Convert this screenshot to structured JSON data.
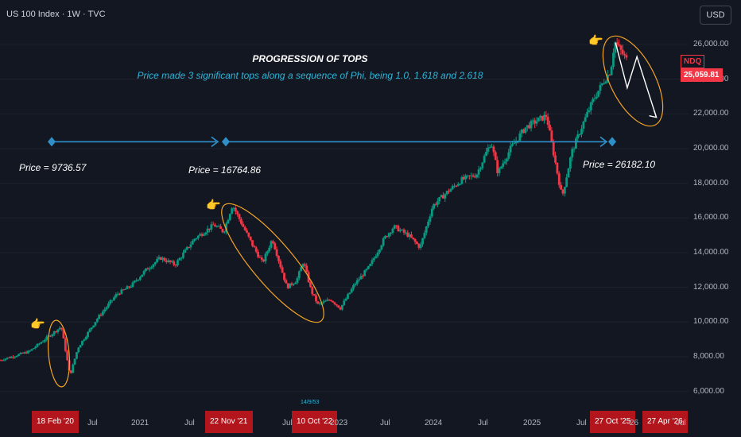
{
  "header": {
    "title": "US 100 Index · 1W · TVC",
    "currency": "USD"
  },
  "annotation": {
    "title": "PROGRESSION OF TOPS",
    "subtitle": "Price made 3 significant tops along a sequence of Phi, being 1.0, 1.618 and 2.618"
  },
  "price_labels": [
    "Price = 9736.57",
    "Price = 16764.86",
    "Price = 26182.10"
  ],
  "small_note": "14/9/53",
  "icons": {
    "hand": "pointing-hand-icon"
  },
  "colors": {
    "up": "#089981",
    "down": "#f23645",
    "ellipse": "#f5a524",
    "arrow": "#2e8fc9",
    "highlight": "#b2151c",
    "background": "#131722"
  },
  "chart_data": {
    "type": "candlestick",
    "title": "US 100 Index · 1W · TVC",
    "symbol": "NDQ",
    "last_price": "25,059.81",
    "ylim": [
      5000,
      27200
    ],
    "y_ticks": [
      "26,000.00",
      "24,000.00",
      "22,000.00",
      "20,000.00",
      "18,000.00",
      "16,000.00",
      "14,000.00",
      "12,000.00",
      "10,000.00",
      "8,000.00",
      "6,000.00"
    ],
    "x_ticks": [
      {
        "label": "18 Feb '20",
        "highlight": true
      },
      {
        "label": "Jul",
        "highlight": false
      },
      {
        "label": "2021",
        "highlight": false
      },
      {
        "label": "Jul",
        "highlight": false
      },
      {
        "label": "22 Nov '21",
        "highlight": true
      },
      {
        "label": "Jul",
        "highlight": false
      },
      {
        "label": "10 Oct '22",
        "highlight": true
      },
      {
        "label": "2023",
        "highlight": false
      },
      {
        "label": "Jul",
        "highlight": false
      },
      {
        "label": "2024",
        "highlight": false
      },
      {
        "label": "Jul",
        "highlight": false
      },
      {
        "label": "2025",
        "highlight": false
      },
      {
        "label": "Jul",
        "highlight": false
      },
      {
        "label": "27 Oct '25",
        "highlight": true
      },
      {
        "label": "'26",
        "highlight": false
      },
      {
        "label": "27 Apr '26",
        "highlight": true
      },
      {
        "label": "Jul",
        "highlight": false
      }
    ],
    "price_path": [
      [
        2019.5,
        7800
      ],
      [
        2019.8,
        8300
      ],
      [
        2020.13,
        9736
      ],
      [
        2020.22,
        6900
      ],
      [
        2020.3,
        8500
      ],
      [
        2020.5,
        10200
      ],
      [
        2020.7,
        11600
      ],
      [
        2020.85,
        12100
      ],
      [
        2021.0,
        13000
      ],
      [
        2021.15,
        13700
      ],
      [
        2021.3,
        13300
      ],
      [
        2021.5,
        14800
      ],
      [
        2021.7,
        15600
      ],
      [
        2021.8,
        15200
      ],
      [
        2021.89,
        16764
      ],
      [
        2022.0,
        15500
      ],
      [
        2022.1,
        14400
      ],
      [
        2022.2,
        13400
      ],
      [
        2022.3,
        14800
      ],
      [
        2022.45,
        12000
      ],
      [
        2022.55,
        12400
      ],
      [
        2022.62,
        13500
      ],
      [
        2022.7,
        11800
      ],
      [
        2022.77,
        11000
      ],
      [
        2022.9,
        11300
      ],
      [
        2023.0,
        10800
      ],
      [
        2023.15,
        12200
      ],
      [
        2023.3,
        13200
      ],
      [
        2023.45,
        14800
      ],
      [
        2023.55,
        15500
      ],
      [
        2023.7,
        15000
      ],
      [
        2023.82,
        14300
      ],
      [
        2023.95,
        16700
      ],
      [
        2024.1,
        17500
      ],
      [
        2024.25,
        18200
      ],
      [
        2024.4,
        18500
      ],
      [
        2024.55,
        20400
      ],
      [
        2024.62,
        18600
      ],
      [
        2024.75,
        20000
      ],
      [
        2024.9,
        21200
      ],
      [
        2025.02,
        21600
      ],
      [
        2025.12,
        21900
      ],
      [
        2025.2,
        19500
      ],
      [
        2025.28,
        17200
      ],
      [
        2025.38,
        19800
      ],
      [
        2025.5,
        21500
      ],
      [
        2025.6,
        22800
      ],
      [
        2025.7,
        23800
      ],
      [
        2025.78,
        24500
      ],
      [
        2025.82,
        26182
      ],
      [
        2025.95,
        25060
      ]
    ],
    "projection_path": [
      [
        2025.83,
        26100
      ],
      [
        2025.95,
        23500
      ],
      [
        2026.05,
        25300
      ],
      [
        2026.25,
        21800
      ]
    ],
    "horizontal_level": 20300,
    "highlighted_tops": [
      {
        "x": 2020.13,
        "price": 9736.57
      },
      {
        "x": 2021.89,
        "price": 16764.86
      },
      {
        "x": 2025.82,
        "price": 26182.1
      }
    ]
  }
}
